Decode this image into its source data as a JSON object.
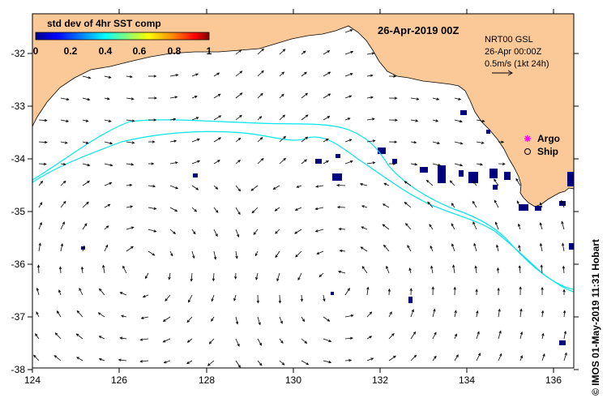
{
  "date_title": "26-Apr-2019 00Z",
  "colorbar": {
    "title": "std dev of 4hr SST comp",
    "ticks": [
      "0",
      "0.2",
      "0.4",
      "0.6",
      "0.8",
      "1"
    ],
    "colors": [
      "#00008f",
      "#0000ff",
      "#00a0ff",
      "#00ffff",
      "#7fff7f",
      "#ffff00",
      "#ff8000",
      "#ff0000",
      "#800000"
    ]
  },
  "legend": {
    "product": "NRT00 GSL",
    "time": "26-Apr 00:00Z",
    "scale": "0.5m/s (1kt 24h)",
    "argo": "Argo",
    "ship": "Ship"
  },
  "lat_labels": [
    "-32",
    "-33",
    "-34",
    "-35",
    "-36",
    "-37",
    "-38"
  ],
  "lon_labels": [
    "124",
    "126",
    "128",
    "130",
    "132",
    "134",
    "136"
  ],
  "credit": "© IMOS 01-May-2019 11:31 Hobart",
  "colors": {
    "land": "#fbc998",
    "shelf_contour": "#00e5ee",
    "patches": "#00007f"
  },
  "icons": {
    "argo": "magenta-asterisk",
    "ship": "open-circle"
  }
}
